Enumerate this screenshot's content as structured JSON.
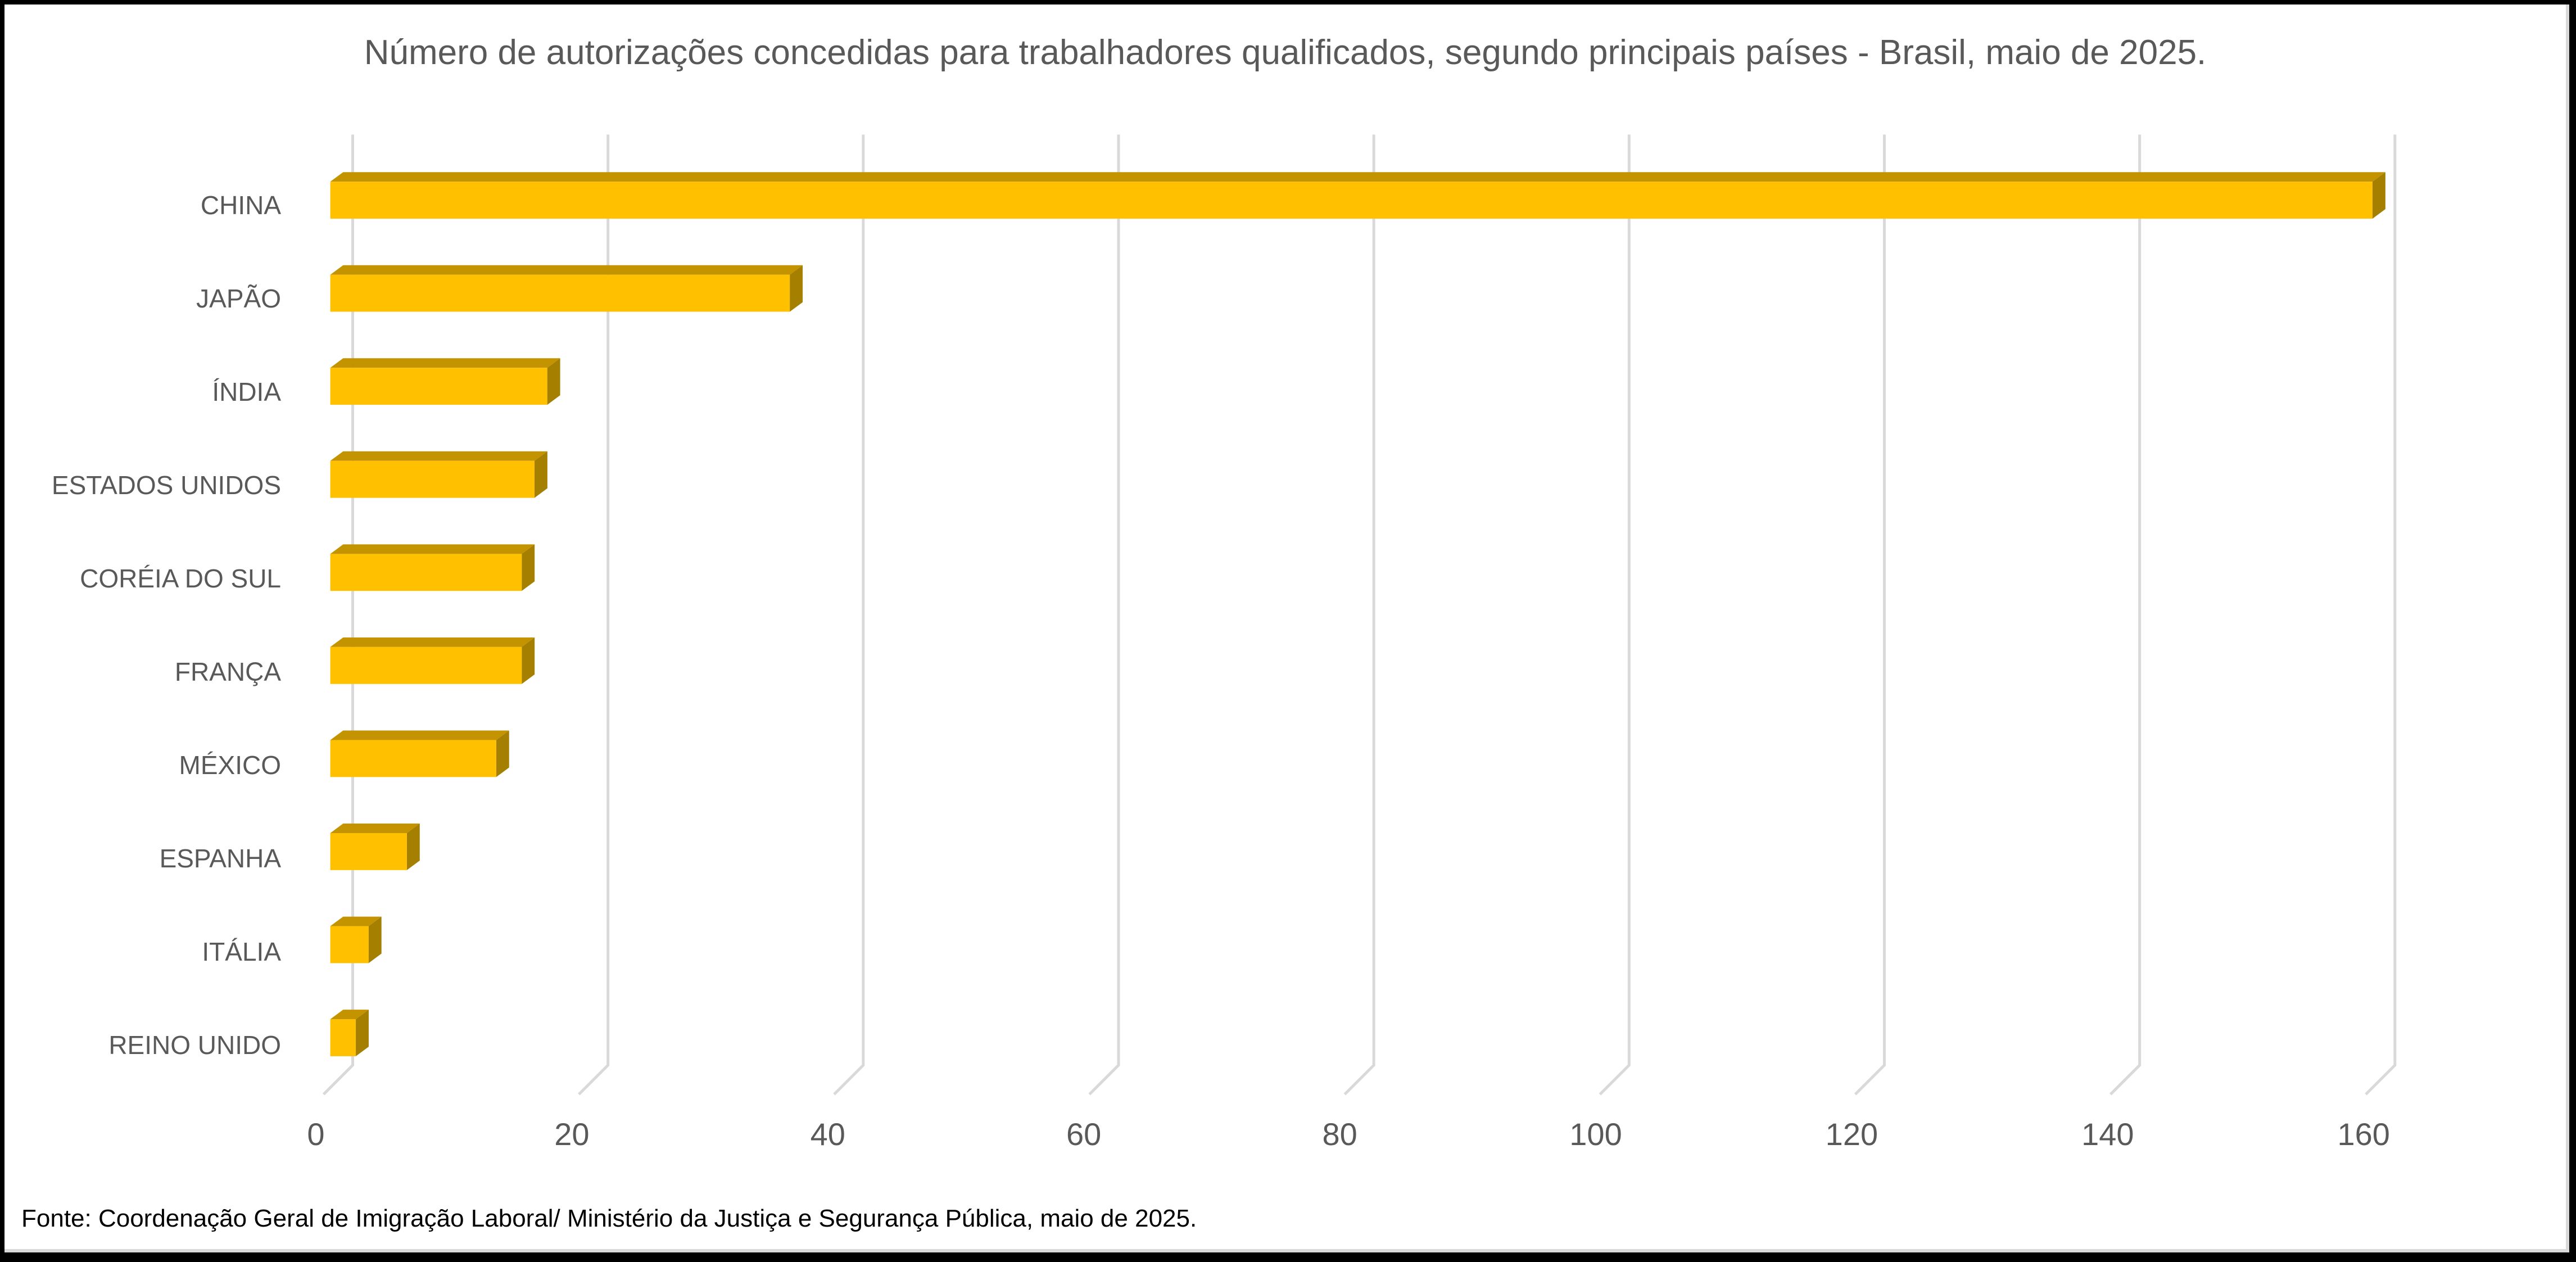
{
  "title": "Número de autorizações concedidas para trabalhadores qualificados, segundo principais países - Brasil, maio de 2025.",
  "footer": "Fonte: Coordenação Geral de Imigração Laboral/ Ministério da Justiça e Segurança Pública, maio de 2025.",
  "colors": {
    "bar_front": "#FFC000",
    "bar_top": "#C49300",
    "bar_side": "#A57F00",
    "gridline": "#D9D9D9",
    "text": "#595959"
  },
  "chart_data": {
    "type": "bar",
    "orientation": "horizontal",
    "style": "3d-clustered-bar",
    "title": "Número de autorizações concedidas para trabalhadores qualificados, segundo principais países - Brasil, maio de 2025.",
    "xlabel": "",
    "ylabel": "",
    "categories": [
      "CHINA",
      "JAPÃO",
      "ÍNDIA",
      "ESTADOS UNIDOS",
      "CORÉIA DO SUL",
      "FRANÇA",
      "MÉXICO",
      "ESPANHA",
      "ITÁLIA",
      "REINO UNIDO"
    ],
    "values": [
      160,
      36,
      17,
      16,
      15,
      15,
      13,
      6,
      3,
      2
    ],
    "xlim": [
      0,
      160
    ],
    "xticks": [
      "0",
      "20",
      "40",
      "60",
      "80",
      "100",
      "120",
      "140",
      "160"
    ],
    "grid": true,
    "legend": null,
    "annotations": [
      "Fonte: Coordenação Geral de Imigração Laboral/ Ministério da Justiça e Segurança Pública, maio de 2025."
    ]
  }
}
